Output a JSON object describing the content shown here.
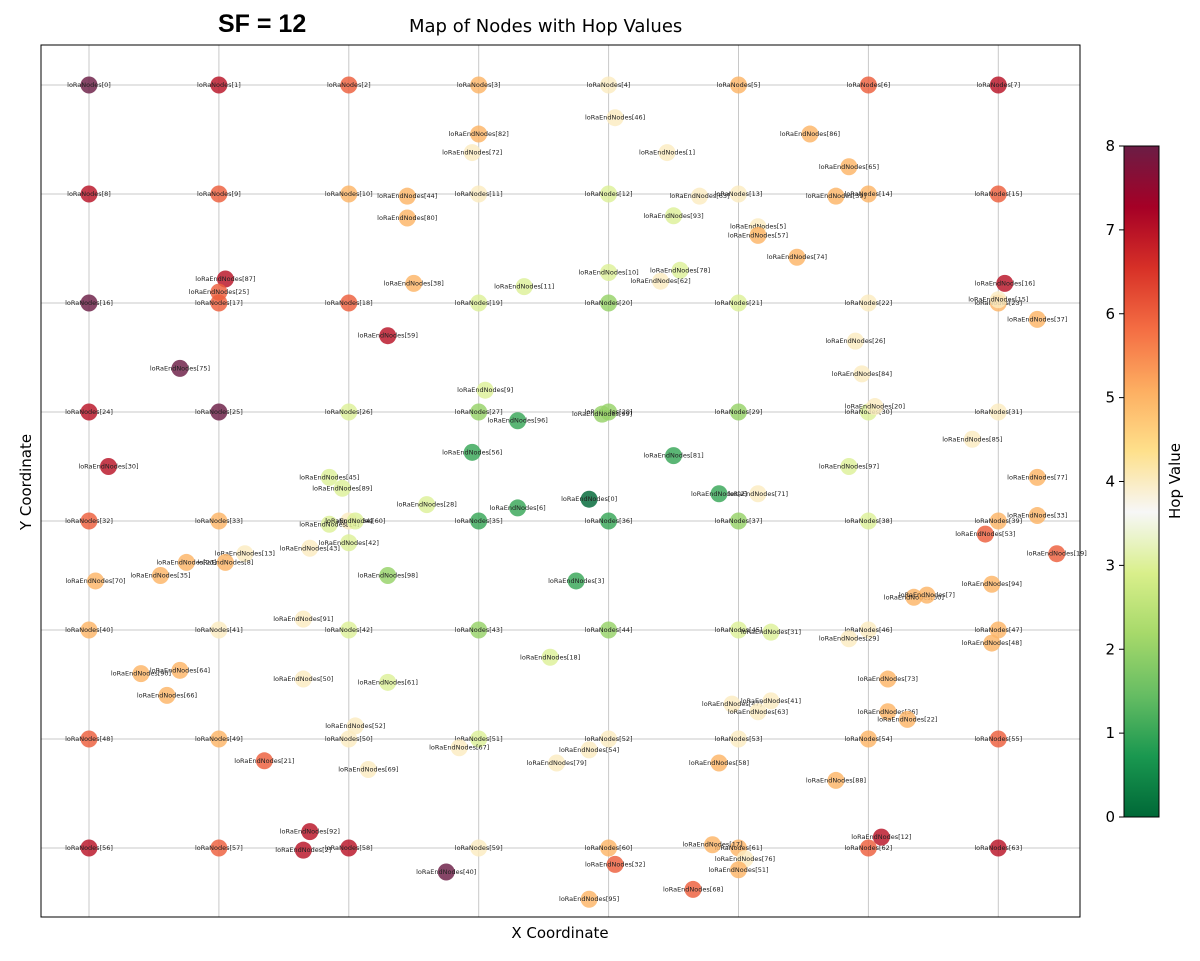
{
  "header": {
    "sf_label": "SF = 12"
  },
  "chart_data": {
    "type": "scatter",
    "title": "Map of Nodes with Hop Values",
    "xlabel": "X Coordinate",
    "ylabel": "Y Coordinate",
    "xlim": [
      0,
      8
    ],
    "ylim": [
      -7.6,
      0.35
    ],
    "grid": true,
    "colorbar": {
      "label": "Hop Value",
      "min": 0,
      "max": 8,
      "ticks": [
        "0",
        "1",
        "2",
        "3",
        "4",
        "5",
        "6",
        "7",
        "8"
      ],
      "colormap": [
        "#006837",
        "#1a9850",
        "#66bd63",
        "#a6d96a",
        "#d9ef8b",
        "#f7f7f7",
        "#fee08b",
        "#fdae61",
        "#f46d43",
        "#d73027",
        "#a50026",
        "#6b1d45"
      ]
    },
    "points": [
      {
        "label": "loRaNodes[0]",
        "x": 0.0,
        "y": 0.0,
        "hop": 8
      },
      {
        "label": "loRaNodes[1]",
        "x": 1.0,
        "y": 0.0,
        "hop": 7
      },
      {
        "label": "loRaNodes[2]",
        "x": 2.0,
        "y": 0.0,
        "hop": 6
      },
      {
        "label": "loRaNodes[3]",
        "x": 3.0,
        "y": 0.0,
        "hop": 5
      },
      {
        "label": "loRaNodes[4]",
        "x": 4.0,
        "y": 0.0,
        "hop": 4
      },
      {
        "label": "loRaNodes[5]",
        "x": 5.0,
        "y": 0.0,
        "hop": 5
      },
      {
        "label": "loRaNodes[6]",
        "x": 6.0,
        "y": 0.0,
        "hop": 6
      },
      {
        "label": "loRaNodes[7]",
        "x": 7.0,
        "y": 0.0,
        "hop": 7
      },
      {
        "label": "loRaNodes[8]",
        "x": 0.0,
        "y": -1.0,
        "hop": 7
      },
      {
        "label": "loRaNodes[9]",
        "x": 1.0,
        "y": -1.0,
        "hop": 6
      },
      {
        "label": "loRaNodes[10]",
        "x": 2.0,
        "y": -1.0,
        "hop": 5
      },
      {
        "label": "loRaNodes[11]",
        "x": 3.0,
        "y": -1.0,
        "hop": 4
      },
      {
        "label": "loRaNodes[12]",
        "x": 4.0,
        "y": -1.0,
        "hop": 3
      },
      {
        "label": "loRaNodes[13]",
        "x": 5.0,
        "y": -1.0,
        "hop": 4
      },
      {
        "label": "loRaNodes[14]",
        "x": 6.0,
        "y": -1.0,
        "hop": 5
      },
      {
        "label": "loRaNodes[15]",
        "x": 7.0,
        "y": -1.0,
        "hop": 6
      },
      {
        "label": "loRaNodes[16]",
        "x": 0.0,
        "y": -2.0,
        "hop": 8
      },
      {
        "label": "loRaNodes[17]",
        "x": 1.0,
        "y": -2.0,
        "hop": 6
      },
      {
        "label": "loRaNodes[18]",
        "x": 2.0,
        "y": -2.0,
        "hop": 6
      },
      {
        "label": "loRaNodes[19]",
        "x": 3.0,
        "y": -2.0,
        "hop": 3
      },
      {
        "label": "loRaNodes[20]",
        "x": 4.0,
        "y": -2.0,
        "hop": 2
      },
      {
        "label": "loRaNodes[21]",
        "x": 5.0,
        "y": -2.0,
        "hop": 3
      },
      {
        "label": "loRaNodes[22]",
        "x": 6.0,
        "y": -2.0,
        "hop": 4
      },
      {
        "label": "loRaNodes[23]",
        "x": 7.0,
        "y": -2.0,
        "hop": 5
      },
      {
        "label": "loRaNodes[24]",
        "x": 0.0,
        "y": -3.0,
        "hop": 7
      },
      {
        "label": "loRaNodes[25]",
        "x": 1.0,
        "y": -3.0,
        "hop": 8
      },
      {
        "label": "loRaNodes[26]",
        "x": 2.0,
        "y": -3.0,
        "hop": 3
      },
      {
        "label": "loRaNodes[27]",
        "x": 3.0,
        "y": -3.0,
        "hop": 2
      },
      {
        "label": "loRaNodes[28]",
        "x": 4.0,
        "y": -3.0,
        "hop": 2
      },
      {
        "label": "loRaNodes[29]",
        "x": 5.0,
        "y": -3.0,
        "hop": 2
      },
      {
        "label": "loRaNodes[30]",
        "x": 6.0,
        "y": -3.0,
        "hop": 3
      },
      {
        "label": "loRaNodes[31]",
        "x": 7.0,
        "y": -3.0,
        "hop": 4
      },
      {
        "label": "loRaNodes[32]",
        "x": 0.0,
        "y": -4.0,
        "hop": 6
      },
      {
        "label": "loRaNodes[33]",
        "x": 1.0,
        "y": -4.0,
        "hop": 5
      },
      {
        "label": "loRaNodes[34]",
        "x": 2.0,
        "y": -4.0,
        "hop": 4
      },
      {
        "label": "loRaNodes[35]",
        "x": 3.0,
        "y": -4.0,
        "hop": 1
      },
      {
        "label": "loRaNodes[36]",
        "x": 4.0,
        "y": -4.0,
        "hop": 1
      },
      {
        "label": "loRaNodes[37]",
        "x": 5.0,
        "y": -4.0,
        "hop": 2
      },
      {
        "label": "loRaNodes[38]",
        "x": 6.0,
        "y": -4.0,
        "hop": 3
      },
      {
        "label": "loRaNodes[39]",
        "x": 7.0,
        "y": -4.0,
        "hop": 5
      },
      {
        "label": "loRaNodes[40]",
        "x": 0.0,
        "y": -5.0,
        "hop": 5
      },
      {
        "label": "loRaNodes[41]",
        "x": 1.0,
        "y": -5.0,
        "hop": 4
      },
      {
        "label": "loRaNodes[42]",
        "x": 2.0,
        "y": -5.0,
        "hop": 3
      },
      {
        "label": "loRaNodes[43]",
        "x": 3.0,
        "y": -5.0,
        "hop": 2
      },
      {
        "label": "loRaNodes[44]",
        "x": 4.0,
        "y": -5.0,
        "hop": 2
      },
      {
        "label": "loRaNodes[45]",
        "x": 5.0,
        "y": -5.0,
        "hop": 3
      },
      {
        "label": "loRaNodes[46]",
        "x": 6.0,
        "y": -5.0,
        "hop": 4
      },
      {
        "label": "loRaNodes[47]",
        "x": 7.0,
        "y": -5.0,
        "hop": 5
      },
      {
        "label": "loRaNodes[48]",
        "x": 0.0,
        "y": -6.0,
        "hop": 6
      },
      {
        "label": "loRaNodes[49]",
        "x": 1.0,
        "y": -6.0,
        "hop": 5
      },
      {
        "label": "loRaNodes[50]",
        "x": 2.0,
        "y": -6.0,
        "hop": 4
      },
      {
        "label": "loRaNodes[51]",
        "x": 3.0,
        "y": -6.0,
        "hop": 3
      },
      {
        "label": "loRaNodes[52]",
        "x": 4.0,
        "y": -6.0,
        "hop": 4
      },
      {
        "label": "loRaNodes[53]",
        "x": 5.0,
        "y": -6.0,
        "hop": 4
      },
      {
        "label": "loRaNodes[54]",
        "x": 6.0,
        "y": -6.0,
        "hop": 5
      },
      {
        "label": "loRaNodes[55]",
        "x": 7.0,
        "y": -6.0,
        "hop": 6
      },
      {
        "label": "loRaNodes[56]",
        "x": 0.0,
        "y": -7.0,
        "hop": 7
      },
      {
        "label": "loRaNodes[57]",
        "x": 1.0,
        "y": -7.0,
        "hop": 6
      },
      {
        "label": "loRaNodes[58]",
        "x": 2.0,
        "y": -7.0,
        "hop": 7
      },
      {
        "label": "loRaNodes[59]",
        "x": 3.0,
        "y": -7.0,
        "hop": 4
      },
      {
        "label": "loRaNodes[60]",
        "x": 4.0,
        "y": -7.0,
        "hop": 5
      },
      {
        "label": "loRaNodes[61]",
        "x": 5.0,
        "y": -7.0,
        "hop": 5
      },
      {
        "label": "loRaNodes[62]",
        "x": 6.0,
        "y": -7.0,
        "hop": 6
      },
      {
        "label": "loRaNodes[63]",
        "x": 7.0,
        "y": -7.0,
        "hop": 7
      },
      {
        "label": "loRaEndNodes[46]",
        "x": 4.05,
        "y": -0.3,
        "hop": 4
      },
      {
        "label": "loRaEndNodes[82]",
        "x": 3.0,
        "y": -0.45,
        "hop": 5
      },
      {
        "label": "loRaEndNodes[72]",
        "x": 2.95,
        "y": -0.62,
        "hop": 4
      },
      {
        "label": "loRaEndNodes[1]",
        "x": 4.45,
        "y": -0.62,
        "hop": 4
      },
      {
        "label": "loRaEndNodes[86]",
        "x": 5.55,
        "y": -0.45,
        "hop": 5
      },
      {
        "label": "loRaEndNodes[65]",
        "x": 5.85,
        "y": -0.75,
        "hop": 5
      },
      {
        "label": "loRaEndNodes[44]",
        "x": 2.45,
        "y": -1.02,
        "hop": 5
      },
      {
        "label": "loRaEndNodes[63]",
        "x": 4.7,
        "y": -1.02,
        "hop": 4
      },
      {
        "label": "loRaEndNodes[39]",
        "x": 5.75,
        "y": -1.02,
        "hop": 5
      },
      {
        "label": "loRaEndNodes[80]",
        "x": 2.45,
        "y": -1.22,
        "hop": 5
      },
      {
        "label": "loRaEndNodes[93]",
        "x": 4.5,
        "y": -1.2,
        "hop": 3
      },
      {
        "label": "loRaEndNodes[5]",
        "x": 5.15,
        "y": -1.3,
        "hop": 4
      },
      {
        "label": "loRaEndNodes[57]",
        "x": 5.15,
        "y": -1.38,
        "hop": 5
      },
      {
        "label": "loRaEndNodes[74]",
        "x": 5.45,
        "y": -1.58,
        "hop": 5
      },
      {
        "label": "loRaEndNodes[87]",
        "x": 1.05,
        "y": -1.78,
        "hop": 7
      },
      {
        "label": "loRaEndNodes[25]",
        "x": 1.0,
        "y": -1.9,
        "hop": 6
      },
      {
        "label": "loRaEndNodes[38]",
        "x": 2.5,
        "y": -1.82,
        "hop": 5
      },
      {
        "label": "loRaEndNodes[11]",
        "x": 3.35,
        "y": -1.85,
        "hop": 3
      },
      {
        "label": "loRaEndNodes[10]",
        "x": 4.0,
        "y": -1.72,
        "hop": 3
      },
      {
        "label": "loRaEndNodes[78]",
        "x": 4.55,
        "y": -1.7,
        "hop": 3
      },
      {
        "label": "loRaEndNodes[62]",
        "x": 4.4,
        "y": -1.8,
        "hop": 4
      },
      {
        "label": "loRaEndNodes[16]",
        "x": 7.05,
        "y": -1.82,
        "hop": 7
      },
      {
        "label": "loRaEndNodes[15]",
        "x": 7.0,
        "y": -1.97,
        "hop": 4
      },
      {
        "label": "loRaEndNodes[37]",
        "x": 7.3,
        "y": -2.15,
        "hop": 5
      },
      {
        "label": "loRaEndNodes[59]",
        "x": 2.3,
        "y": -2.3,
        "hop": 7
      },
      {
        "label": "loRaEndNodes[26]",
        "x": 5.9,
        "y": -2.35,
        "hop": 4
      },
      {
        "label": "loRaEndNodes[75]",
        "x": 0.7,
        "y": -2.6,
        "hop": 8
      },
      {
        "label": "loRaEndNodes[84]",
        "x": 5.95,
        "y": -2.65,
        "hop": 4
      },
      {
        "label": "loRaEndNodes[9]",
        "x": 3.05,
        "y": -2.8,
        "hop": 3
      },
      {
        "label": "loRaEndNodes[20]",
        "x": 6.05,
        "y": -2.95,
        "hop": 4
      },
      {
        "label": "loRaEndNodes[96]",
        "x": 3.3,
        "y": -3.08,
        "hop": 1
      },
      {
        "label": "loRaEndNodes[99]",
        "x": 3.95,
        "y": -3.02,
        "hop": 2
      },
      {
        "label": "loRaEndNodes[85]",
        "x": 6.8,
        "y": -3.25,
        "hop": 4
      },
      {
        "label": "loRaEndNodes[30]",
        "x": 0.15,
        "y": -3.5,
        "hop": 7
      },
      {
        "label": "loRaEndNodes[56]",
        "x": 2.95,
        "y": -3.37,
        "hop": 1
      },
      {
        "label": "loRaEndNodes[81]",
        "x": 4.5,
        "y": -3.4,
        "hop": 1
      },
      {
        "label": "loRaEndNodes[97]",
        "x": 5.85,
        "y": -3.5,
        "hop": 3
      },
      {
        "label": "loRaEndNodes[45]",
        "x": 1.85,
        "y": -3.6,
        "hop": 3
      },
      {
        "label": "loRaEndNodes[89]",
        "x": 1.95,
        "y": -3.7,
        "hop": 3
      },
      {
        "label": "loRaEndNodes[77]",
        "x": 7.3,
        "y": -3.6,
        "hop": 5
      },
      {
        "label": "loRaEndNodes[71]",
        "x": 5.15,
        "y": -3.75,
        "hop": 4
      },
      {
        "label": "loRaEndNodes[2]",
        "x": 4.85,
        "y": -3.75,
        "hop": 1
      },
      {
        "label": "loRaEndNodes[0]",
        "x": 3.85,
        "y": -3.8,
        "hop": 0
      },
      {
        "label": "loRaEndNodes[28]",
        "x": 2.6,
        "y": -3.85,
        "hop": 3
      },
      {
        "label": "loRaEndNodes[6]",
        "x": 3.3,
        "y": -3.88,
        "hop": 1
      },
      {
        "label": "loRaEndNodes[14]",
        "x": 1.85,
        "y": -4.03,
        "hop": 3
      },
      {
        "label": "loRaEndNodes[60]",
        "x": 2.05,
        "y": -4.0,
        "hop": 3
      },
      {
        "label": "loRaEndNodes[33]",
        "x": 7.3,
        "y": -3.95,
        "hop": 5
      },
      {
        "label": "loRaEndNodes[42]",
        "x": 2.0,
        "y": -4.2,
        "hop": 3
      },
      {
        "label": "loRaEndNodes[53]",
        "x": 6.9,
        "y": -4.12,
        "hop": 6
      },
      {
        "label": "loRaEndNodes[43]",
        "x": 1.7,
        "y": -4.25,
        "hop": 4
      },
      {
        "label": "loRaEndNodes[13]",
        "x": 1.2,
        "y": -4.3,
        "hop": 4
      },
      {
        "label": "loRaEndNodes[8]",
        "x": 1.05,
        "y": -4.38,
        "hop": 5
      },
      {
        "label": "loRaEndNodes[23]",
        "x": 0.75,
        "y": -4.38,
        "hop": 5
      },
      {
        "label": "loRaEndNodes[19]",
        "x": 7.45,
        "y": -4.3,
        "hop": 6
      },
      {
        "label": "loRaEndNodes[35]",
        "x": 0.55,
        "y": -4.5,
        "hop": 5
      },
      {
        "label": "loRaEndNodes[70]",
        "x": 0.05,
        "y": -4.55,
        "hop": 5
      },
      {
        "label": "loRaEndNodes[98]",
        "x": 2.3,
        "y": -4.5,
        "hop": 2
      },
      {
        "label": "loRaEndNodes[3]",
        "x": 3.75,
        "y": -4.55,
        "hop": 1
      },
      {
        "label": "loRaEndNodes[94]",
        "x": 6.95,
        "y": -4.58,
        "hop": 5
      },
      {
        "label": "loRaEndNodes[50]",
        "x": 6.35,
        "y": -4.7,
        "hop": 5
      },
      {
        "label": "loRaEndNodes[7]",
        "x": 6.45,
        "y": -4.68,
        "hop": 5
      },
      {
        "label": "loRaEndNodes[91]",
        "x": 1.65,
        "y": -4.9,
        "hop": 4
      },
      {
        "label": "loRaEndNodes[31]",
        "x": 5.25,
        "y": -5.02,
        "hop": 3
      },
      {
        "label": "loRaEndNodes[29]",
        "x": 5.85,
        "y": -5.08,
        "hop": 4
      },
      {
        "label": "loRaEndNodes[48]",
        "x": 6.95,
        "y": -5.12,
        "hop": 5
      },
      {
        "label": "loRaEndNodes[18]",
        "x": 3.55,
        "y": -5.25,
        "hop": 3
      },
      {
        "label": "loRaEndNodes[90]",
        "x": 0.4,
        "y": -5.4,
        "hop": 5
      },
      {
        "label": "loRaEndNodes[64]",
        "x": 0.7,
        "y": -5.37,
        "hop": 5
      },
      {
        "label": "loRaEndNodes[50]",
        "x": 1.65,
        "y": -5.45,
        "hop": 4
      },
      {
        "label": "loRaEndNodes[61]",
        "x": 2.3,
        "y": -5.48,
        "hop": 3
      },
      {
        "label": "loRaEndNodes[73]",
        "x": 6.15,
        "y": -5.45,
        "hop": 5
      },
      {
        "label": "loRaEndNodes[66]",
        "x": 0.6,
        "y": -5.6,
        "hop": 5
      },
      {
        "label": "loRaEndNodes[47]",
        "x": 4.95,
        "y": -5.68,
        "hop": 4
      },
      {
        "label": "loRaEndNodes[41]",
        "x": 5.25,
        "y": -5.65,
        "hop": 4
      },
      {
        "label": "loRaEndNodes[63]",
        "x": 5.15,
        "y": -5.75,
        "hop": 4
      },
      {
        "label": "loRaEndNodes[36]",
        "x": 6.15,
        "y": -5.75,
        "hop": 5
      },
      {
        "label": "loRaEndNodes[22]",
        "x": 6.3,
        "y": -5.82,
        "hop": 5
      },
      {
        "label": "loRaEndNodes[52]",
        "x": 2.05,
        "y": -5.88,
        "hop": 4
      },
      {
        "label": "loRaEndNodes[67]",
        "x": 2.85,
        "y": -6.08,
        "hop": 4
      },
      {
        "label": "loRaEndNodes[54]",
        "x": 3.85,
        "y": -6.1,
        "hop": 4
      },
      {
        "label": "loRaEndNodes[21]",
        "x": 1.35,
        "y": -6.2,
        "hop": 6
      },
      {
        "label": "loRaEndNodes[79]",
        "x": 3.6,
        "y": -6.22,
        "hop": 4
      },
      {
        "label": "loRaEndNodes[58]",
        "x": 4.85,
        "y": -6.22,
        "hop": 5
      },
      {
        "label": "loRaEndNodes[69]",
        "x": 2.15,
        "y": -6.28,
        "hop": 4
      },
      {
        "label": "loRaEndNodes[88]",
        "x": 5.75,
        "y": -6.38,
        "hop": 5
      },
      {
        "label": "loRaEndNodes[92]",
        "x": 1.7,
        "y": -6.85,
        "hop": 7
      },
      {
        "label": "loRaEndNodes[12]",
        "x": 6.1,
        "y": -6.9,
        "hop": 7
      },
      {
        "label": "loRaEndNodes[17]",
        "x": 4.8,
        "y": -6.97,
        "hop": 5
      },
      {
        "label": "loRaEndNodes[2]",
        "x": 1.65,
        "y": -7.02,
        "hop": 7
      },
      {
        "label": "loRaEndNodes[76]",
        "x": 5.05,
        "y": -7.1,
        "hop": 4
      },
      {
        "label": "loRaEndNodes[32]",
        "x": 4.05,
        "y": -7.15,
        "hop": 6
      },
      {
        "label": "loRaEndNodes[51]",
        "x": 5.0,
        "y": -7.2,
        "hop": 5
      },
      {
        "label": "loRaEndNodes[40]",
        "x": 2.75,
        "y": -7.22,
        "hop": 8
      },
      {
        "label": "loRaEndNodes[68]",
        "x": 4.65,
        "y": -7.38,
        "hop": 6
      },
      {
        "label": "loRaEndNodes[95]",
        "x": 3.85,
        "y": -7.47,
        "hop": 5
      }
    ]
  }
}
